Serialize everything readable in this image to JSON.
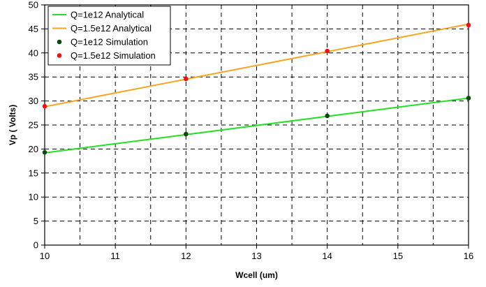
{
  "chart_data": {
    "type": "line",
    "title": "",
    "xlabel": "Wcell (um)",
    "ylabel": "Vp ( Volts)",
    "xlim": [
      10,
      16
    ],
    "ylim": [
      0,
      50
    ],
    "x_ticks": [
      10,
      11,
      12,
      13,
      14,
      15,
      16
    ],
    "y_ticks": [
      0,
      5,
      10,
      15,
      20,
      25,
      30,
      35,
      40,
      45,
      50
    ],
    "grid": true,
    "legend_position": "top-left",
    "series": [
      {
        "name": "Q=1e12 Analytical",
        "kind": "line",
        "color": "#22e022",
        "x": [
          10,
          16
        ],
        "y": [
          19.2,
          30.6
        ]
      },
      {
        "name": "Q=1.5e12 Analytical",
        "kind": "line",
        "color": "#f5a623",
        "x": [
          10,
          16
        ],
        "y": [
          28.8,
          46.0
        ]
      },
      {
        "name": "Q=1e12 Simulation",
        "kind": "scatter",
        "color": "#0b4a0b",
        "x": [
          10,
          12,
          14,
          16
        ],
        "y": [
          19.3,
          23.1,
          26.9,
          30.6
        ]
      },
      {
        "name": "Q=1.5e12 Simulation",
        "kind": "scatter",
        "color": "#ee1111",
        "x": [
          10,
          12,
          14,
          16
        ],
        "y": [
          28.9,
          34.6,
          40.4,
          45.8
        ]
      }
    ]
  }
}
